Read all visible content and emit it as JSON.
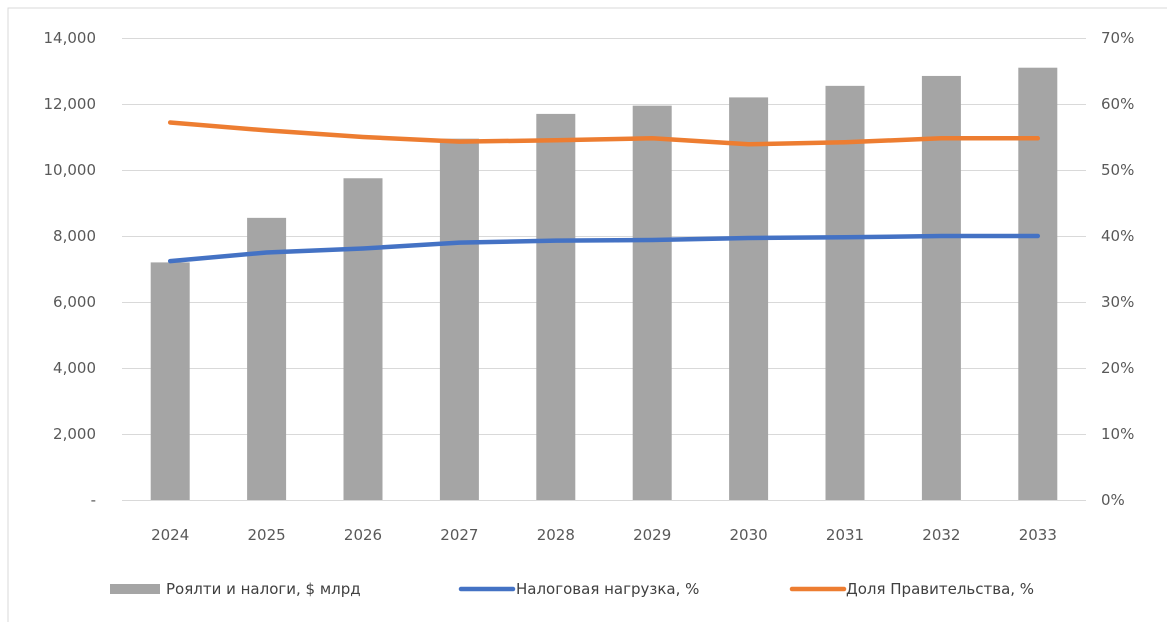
{
  "chart_data": {
    "type": "bar",
    "categories": [
      "2024",
      "2025",
      "2026",
      "2027",
      "2028",
      "2029",
      "2030",
      "2031",
      "2032",
      "2033"
    ],
    "series": [
      {
        "name": "Роялти и налоги, $ млрд",
        "type": "bar",
        "axis": "left",
        "color": "#a5a5a5",
        "values": [
          7200,
          8550,
          9750,
          10950,
          11700,
          11950,
          12200,
          12550,
          12850,
          13100
        ]
      },
      {
        "name": "Налоговая нагрузка, %",
        "type": "line",
        "axis": "right",
        "color": "#4472c4",
        "values": [
          0.362,
          0.375,
          0.381,
          0.39,
          0.393,
          0.394,
          0.397,
          0.398,
          0.4,
          0.4
        ]
      },
      {
        "name": "Доля Правительства, %",
        "type": "line",
        "axis": "right",
        "color": "#ed7d31",
        "values": [
          0.572,
          0.56,
          0.55,
          0.543,
          0.545,
          0.548,
          0.539,
          0.542,
          0.548,
          0.548
        ]
      }
    ],
    "y_left": {
      "min": 0,
      "max": 14000,
      "ticks": [
        0,
        2000,
        4000,
        6000,
        8000,
        10000,
        12000,
        14000
      ],
      "tick_labels": [
        "-",
        "2,000",
        "4,000",
        "6,000",
        "8,000",
        "10,000",
        "12,000",
        "14,000"
      ]
    },
    "y_right": {
      "min": 0,
      "max": 0.7,
      "ticks": [
        0,
        0.1,
        0.2,
        0.3,
        0.4,
        0.5,
        0.6,
        0.7
      ],
      "tick_labels": [
        "0%",
        "10%",
        "20%",
        "30%",
        "40%",
        "50%",
        "60%",
        "70%"
      ]
    },
    "grid": true,
    "legend_position": "bottom",
    "gridline_color": "#d9d9d9",
    "border_color": "#d9d9d9"
  }
}
